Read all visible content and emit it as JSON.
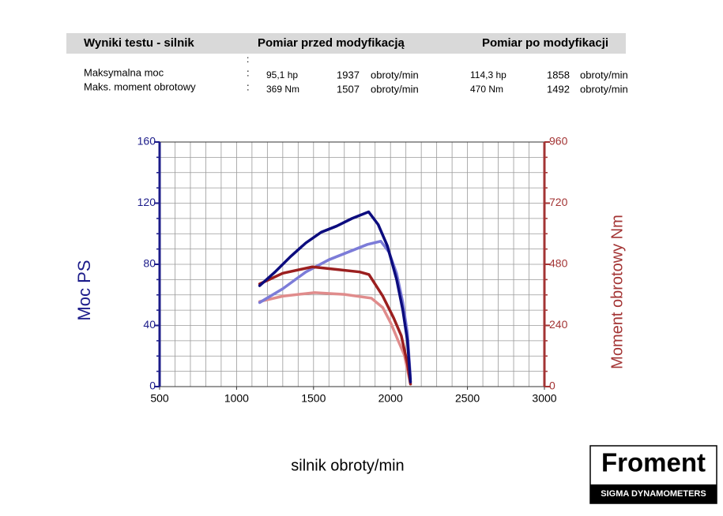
{
  "header": {
    "title": "Wyniki testu - silnik",
    "before": "Pomiar przed modyfikacją",
    "after": "Pomiar po modyfikacji"
  },
  "table": {
    "top_colon": ":",
    "rows": [
      [
        "Maksymalna moc",
        ":",
        "95,1 hp",
        "1937",
        "obroty/min",
        "114,3 hp",
        "1858",
        "obroty/min"
      ],
      [
        "Maks. moment obrotowy",
        ":",
        "369 Nm",
        "1507",
        "obroty/min",
        "470 Nm",
        "1492",
        "obroty/min"
      ]
    ]
  },
  "logo": {
    "name": "Froment",
    "tagline": "SIGMA DYNAMOMETERS"
  },
  "chart_data": {
    "type": "line",
    "xlabel": "silnik obroty/min",
    "ylabel": "Moc PS",
    "y2label": "Moment obrotowy Nm",
    "xlim": [
      500,
      3000
    ],
    "xticks": [
      500,
      1000,
      1500,
      2000,
      2500,
      3000
    ],
    "ylim": [
      0,
      160
    ],
    "yticks": [
      0,
      40,
      80,
      120,
      160
    ],
    "y2lim": [
      0,
      960
    ],
    "y2ticks": [
      0,
      240,
      480,
      720,
      960
    ],
    "grid": true,
    "grid_step_x": 100,
    "grid_step_y": 10,
    "ycolor": "#1c1c8a",
    "y2color": "#a33434",
    "series": [
      {
        "color": "#0c0c7e",
        "x": [
          1150,
          1250,
          1350,
          1450,
          1550,
          1650,
          1750,
          1858,
          1920,
          1980,
          2040,
          2080,
          2110,
          2130
        ],
        "values": [
          66,
          75,
          85,
          94,
          101,
          105,
          110,
          114.3,
          106,
          92,
          70,
          50,
          30,
          3
        ]
      },
      {
        "color": "#7c7cd8",
        "x": [
          1150,
          1300,
          1450,
          1600,
          1750,
          1850,
          1937,
          1990,
          2040,
          2080,
          2110,
          2130
        ],
        "values": [
          55,
          64,
          75,
          83,
          89,
          93,
          95.1,
          88,
          74,
          55,
          35,
          5
        ]
      },
      {
        "color": "#9b1f1f",
        "axis": "y2",
        "x": [
          1150,
          1300,
          1492,
          1650,
          1800,
          1860,
          1950,
          2020,
          2070,
          2110,
          2130
        ],
        "values": [
          403,
          445,
          470,
          460,
          450,
          440,
          355,
          270,
          200,
          90,
          10
        ]
      },
      {
        "color": "#e08c8c",
        "axis": "y2",
        "x": [
          1150,
          1300,
          1507,
          1700,
          1876,
          1950,
          2003,
          2050,
          2090,
          2130
        ],
        "values": [
          334,
          355,
          369,
          362,
          347,
          310,
          248,
          180,
          124,
          10
        ]
      }
    ]
  }
}
